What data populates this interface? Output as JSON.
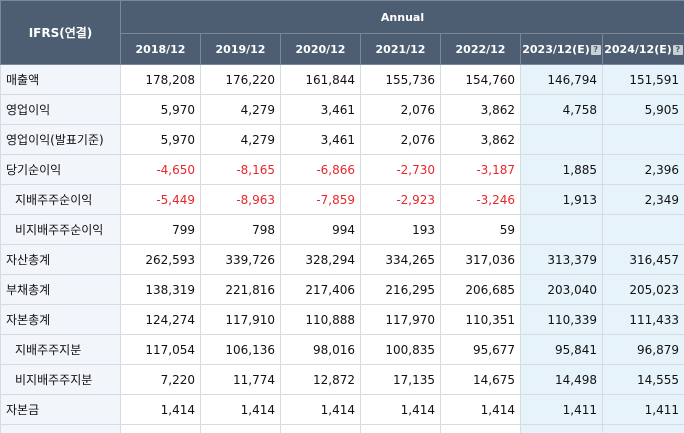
{
  "header": {
    "ifrs_label": "IFRS(연결)",
    "annual_label": "Annual",
    "periods": [
      {
        "label": "2018/12",
        "estimate": false
      },
      {
        "label": "2019/12",
        "estimate": false
      },
      {
        "label": "2020/12",
        "estimate": false
      },
      {
        "label": "2021/12",
        "estimate": false
      },
      {
        "label": "2022/12",
        "estimate": false
      },
      {
        "label": "2023/12(E)",
        "estimate": true
      },
      {
        "label": "2024/12(E)",
        "estimate": true
      }
    ],
    "help_icon": "question-icon"
  },
  "colors": {
    "header_bg": "#4d5e73",
    "negative": "#e8262b",
    "estimate_bg": "#e6f3fb",
    "label_bg": "#f2f5fa"
  },
  "rows": [
    {
      "label": "매출액",
      "sub": false,
      "values": [
        "178,208",
        "176,220",
        "161,844",
        "155,736",
        "154,760",
        "146,794",
        "151,591"
      ]
    },
    {
      "label": "영업이익",
      "sub": false,
      "values": [
        "5,970",
        "4,279",
        "3,461",
        "2,076",
        "3,862",
        "4,758",
        "5,905"
      ]
    },
    {
      "label": "영업이익(발표기준)",
      "sub": false,
      "values": [
        "5,970",
        "4,279",
        "3,461",
        "2,076",
        "3,862",
        "",
        ""
      ]
    },
    {
      "label": "당기순이익",
      "sub": false,
      "values": [
        "-4,650",
        "-8,165",
        "-6,866",
        "-2,730",
        "-3,187",
        "1,885",
        "2,396"
      ]
    },
    {
      "label": "지배주주순이익",
      "sub": true,
      "values": [
        "-5,449",
        "-8,963",
        "-7,859",
        "-2,923",
        "-3,246",
        "1,913",
        "2,349"
      ]
    },
    {
      "label": "비지배주주순이익",
      "sub": true,
      "values": [
        "799",
        "798",
        "994",
        "193",
        "59",
        "",
        ""
      ]
    },
    {
      "label": "자산총계",
      "sub": false,
      "values": [
        "262,593",
        "339,726",
        "328,294",
        "334,265",
        "317,036",
        "313,379",
        "316,457"
      ]
    },
    {
      "label": "부채총계",
      "sub": false,
      "values": [
        "138,319",
        "221,816",
        "217,406",
        "216,295",
        "206,685",
        "203,040",
        "205,023"
      ]
    },
    {
      "label": "자본총계",
      "sub": false,
      "values": [
        "124,274",
        "117,910",
        "110,888",
        "117,970",
        "110,351",
        "110,339",
        "111,433"
      ]
    },
    {
      "label": "지배주주지분",
      "sub": true,
      "values": [
        "117,054",
        "106,136",
        "98,016",
        "100,835",
        "95,677",
        "95,841",
        "96,879"
      ]
    },
    {
      "label": "비지배주주지분",
      "sub": true,
      "values": [
        "7,220",
        "11,774",
        "12,872",
        "17,135",
        "14,675",
        "14,498",
        "14,555"
      ]
    },
    {
      "label": "자본금",
      "sub": false,
      "values": [
        "1,414",
        "1,414",
        "1,414",
        "1,414",
        "1,414",
        "1,411",
        "1,411"
      ]
    },
    {
      "label": "",
      "sub": false,
      "values": [
        "",
        "",
        "",
        "",
        "",
        "",
        ""
      ]
    }
  ]
}
